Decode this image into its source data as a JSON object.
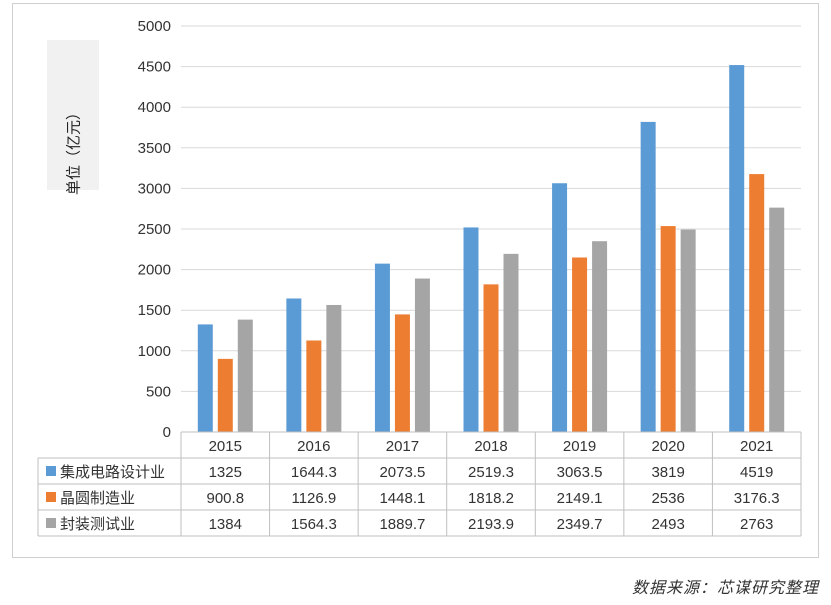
{
  "chart_data": {
    "type": "bar",
    "categories": [
      "2015",
      "2016",
      "2017",
      "2018",
      "2019",
      "2020",
      "2021"
    ],
    "series": [
      {
        "name": "集成电路设计业",
        "color": "#5b9bd5",
        "values": [
          1325,
          1644.3,
          2073.5,
          2519.3,
          3063.5,
          3819,
          4519
        ],
        "labels": [
          "1325",
          "1644.3",
          "2073.5",
          "2519.3",
          "3063.5",
          "3819",
          "4519"
        ]
      },
      {
        "name": "晶圆制造业",
        "color": "#ed7d31",
        "values": [
          900.8,
          1126.9,
          1448.1,
          1818.2,
          2149.1,
          2536,
          3176.3
        ],
        "labels": [
          "900.8",
          "1126.9",
          "1448.1",
          "1818.2",
          "2149.1",
          "2536",
          "3176.3"
        ]
      },
      {
        "name": "封装测试业",
        "color": "#a5a5a5",
        "values": [
          1384,
          1564.3,
          1889.7,
          2193.9,
          2349.7,
          2493,
          2763
        ],
        "labels": [
          "1384",
          "1564.3",
          "1889.7",
          "2193.9",
          "2349.7",
          "2493",
          "2763"
        ]
      }
    ],
    "ylabel": "单位（亿元）",
    "ylim": [
      0,
      5000
    ],
    "yticks": [
      "0",
      "500",
      "1000",
      "1500",
      "2000",
      "2500",
      "3000",
      "3500",
      "4000",
      "4500",
      "5000"
    ],
    "grid": true,
    "legend": "data-table"
  },
  "source_note": "数据来源：芯谋研究整理"
}
